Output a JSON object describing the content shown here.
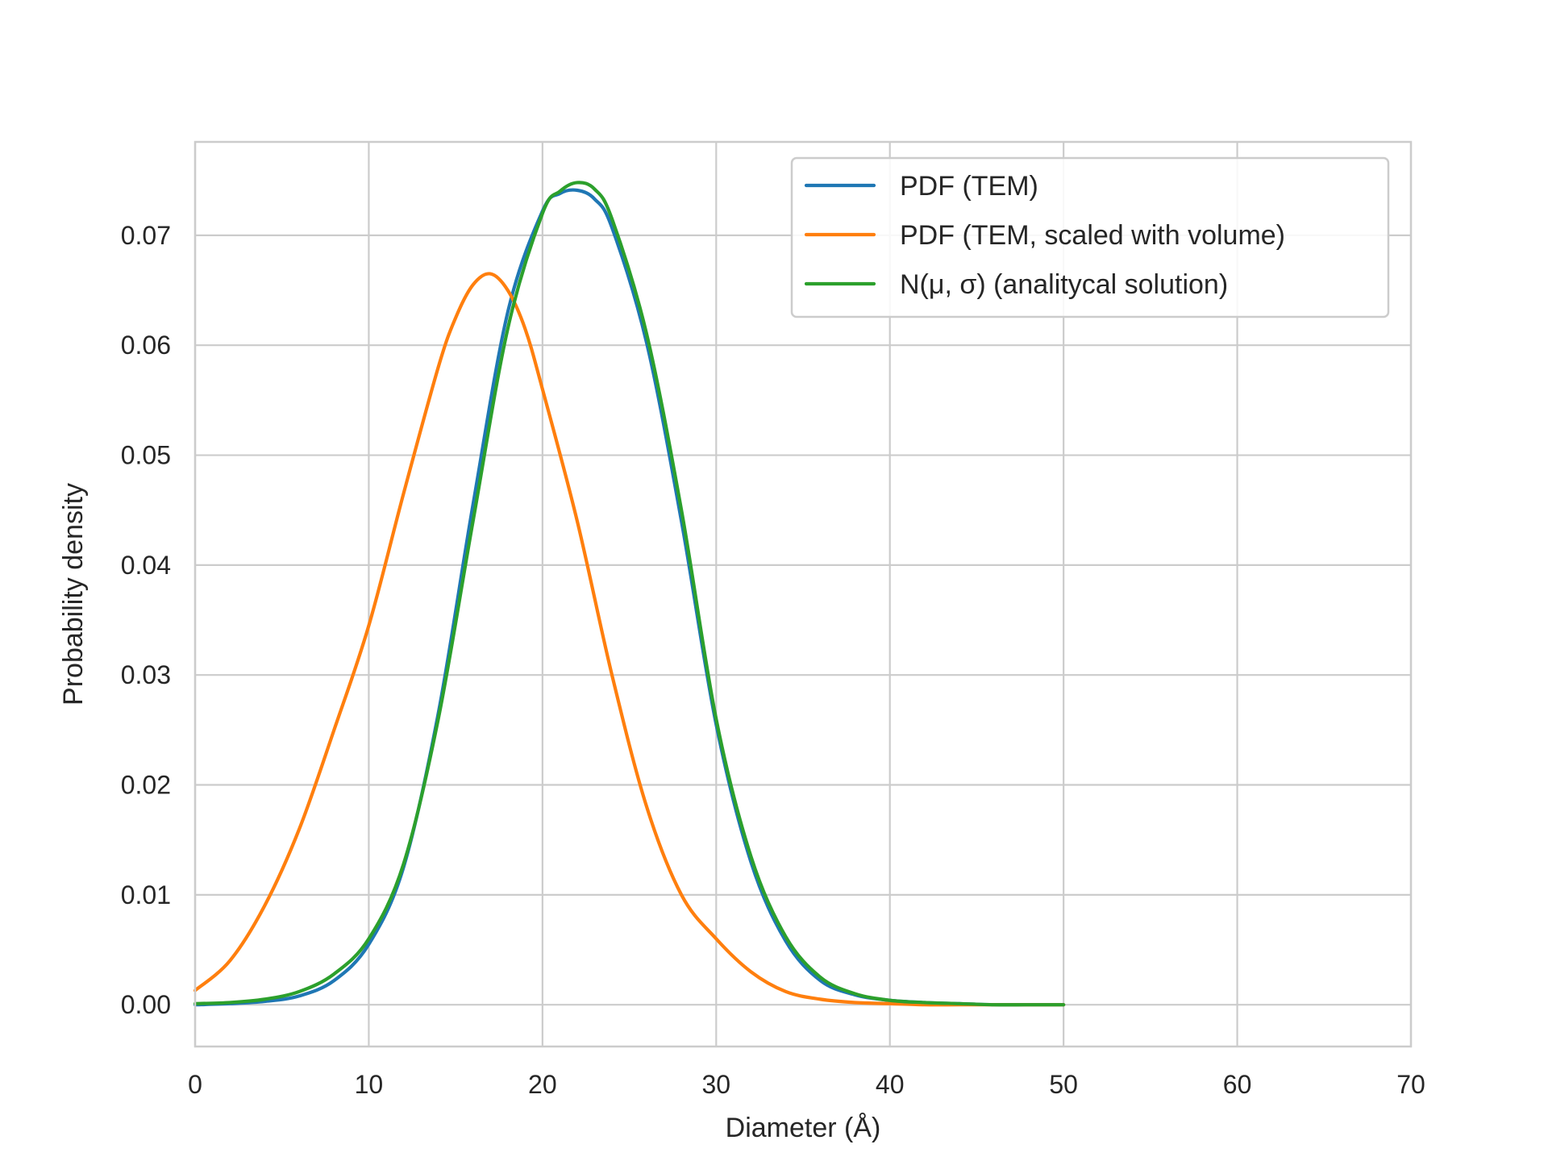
{
  "chart_data": {
    "type": "line",
    "title": "",
    "xlabel": "Diameter (Å)",
    "ylabel": "Probability density",
    "xlim": [
      0,
      70
    ],
    "ylim": [
      -0.0038,
      0.0785
    ],
    "x_ticks": [
      0,
      10,
      20,
      30,
      40,
      50,
      60,
      70
    ],
    "x_tick_labels": [
      "0",
      "10",
      "20",
      "30",
      "40",
      "50",
      "60",
      "70"
    ],
    "y_ticks": [
      0.0,
      0.01,
      0.02,
      0.03,
      0.04,
      0.05,
      0.06,
      0.07
    ],
    "y_tick_labels": [
      "0.00",
      "0.01",
      "0.02",
      "0.03",
      "0.04",
      "0.05",
      "0.06",
      "0.07"
    ],
    "grid": true,
    "legend_position": "top-right",
    "series": [
      {
        "name": "PDF (TEM)",
        "color": "#1f77b4",
        "x": [
          0,
          2,
          4,
          6,
          8,
          10,
          12,
          14,
          16,
          18,
          20,
          21,
          22,
          23,
          24,
          26,
          28,
          30,
          32,
          34,
          36,
          38,
          40,
          42,
          44,
          46,
          48,
          50
        ],
        "y": [
          0.0,
          0.0001,
          0.0003,
          0.0008,
          0.0022,
          0.0055,
          0.0125,
          0.0265,
          0.0455,
          0.063,
          0.0722,
          0.0738,
          0.0741,
          0.0733,
          0.0707,
          0.0602,
          0.044,
          0.0255,
          0.013,
          0.0058,
          0.0022,
          0.0009,
          0.0004,
          0.0002,
          0.0001,
          0.0,
          0.0,
          0.0
        ]
      },
      {
        "name": "PDF (TEM, scaled with volume)",
        "color": "#ff7f0e",
        "x": [
          0,
          2,
          4,
          6,
          8,
          10,
          12,
          14,
          15,
          16,
          17,
          18,
          19,
          20,
          22,
          24,
          26,
          28,
          30,
          32,
          34,
          36,
          38,
          40,
          42,
          44,
          46,
          48,
          50
        ],
        "y": [
          0.0013,
          0.004,
          0.009,
          0.016,
          0.025,
          0.0345,
          0.0465,
          0.058,
          0.0625,
          0.0655,
          0.0665,
          0.065,
          0.0615,
          0.056,
          0.044,
          0.03,
          0.018,
          0.01,
          0.006,
          0.003,
          0.0012,
          0.0005,
          0.0002,
          0.0001,
          0.0,
          0.0,
          0.0,
          0.0,
          0.0
        ]
      },
      {
        "name": "N(μ, σ) (analitycal solution)",
        "color": "#2ca02c",
        "x": [
          0,
          2,
          4,
          6,
          8,
          10,
          12,
          14,
          16,
          18,
          20,
          21,
          22,
          23,
          24,
          26,
          28,
          30,
          32,
          34,
          36,
          38,
          40,
          42,
          44,
          46,
          48,
          50
        ],
        "y": [
          0.0001,
          0.0002,
          0.0005,
          0.0012,
          0.0028,
          0.006,
          0.0128,
          0.026,
          0.044,
          0.0615,
          0.072,
          0.074,
          0.0748,
          0.0742,
          0.0715,
          0.061,
          0.045,
          0.026,
          0.0135,
          0.0062,
          0.0025,
          0.001,
          0.0004,
          0.0002,
          0.0001,
          0.0,
          0.0,
          0.0
        ]
      }
    ]
  }
}
